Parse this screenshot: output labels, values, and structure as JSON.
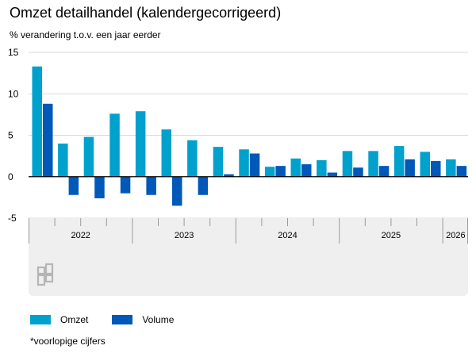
{
  "title": "Omzet detailhandel (kalendergecorrigeerd)",
  "subtitle": "% verandering t.o.v. een jaar eerder",
  "footnote": "*voorlopige cijfers",
  "colors": {
    "omzet": "#00a1cd",
    "volume": "#0058b8"
  },
  "chart_data": {
    "type": "bar",
    "ylim": [
      -5,
      15
    ],
    "yticks": [
      -5,
      0,
      5,
      10,
      15
    ],
    "grid": true,
    "legend_position": "bottom-left",
    "years": [
      {
        "label": "2022",
        "quarters": 4
      },
      {
        "label": "2023",
        "quarters": 4
      },
      {
        "label": "2024",
        "quarters": 4
      },
      {
        "label": "2025",
        "quarters": 4
      },
      {
        "label": "2026",
        "quarters": 1
      }
    ],
    "series": [
      {
        "name": "Omzet",
        "values": [
          13.3,
          4.0,
          4.8,
          7.6,
          7.9,
          5.7,
          4.4,
          3.6,
          3.3,
          1.2,
          2.2,
          2.0,
          3.1,
          3.1,
          3.7,
          3.0,
          2.1
        ]
      },
      {
        "name": "Volume",
        "values": [
          8.8,
          -2.2,
          -2.6,
          -2.0,
          -2.2,
          -3.5,
          -2.2,
          0.3,
          2.8,
          1.3,
          1.5,
          0.5,
          1.1,
          1.3,
          2.1,
          1.9,
          1.3
        ]
      }
    ]
  }
}
